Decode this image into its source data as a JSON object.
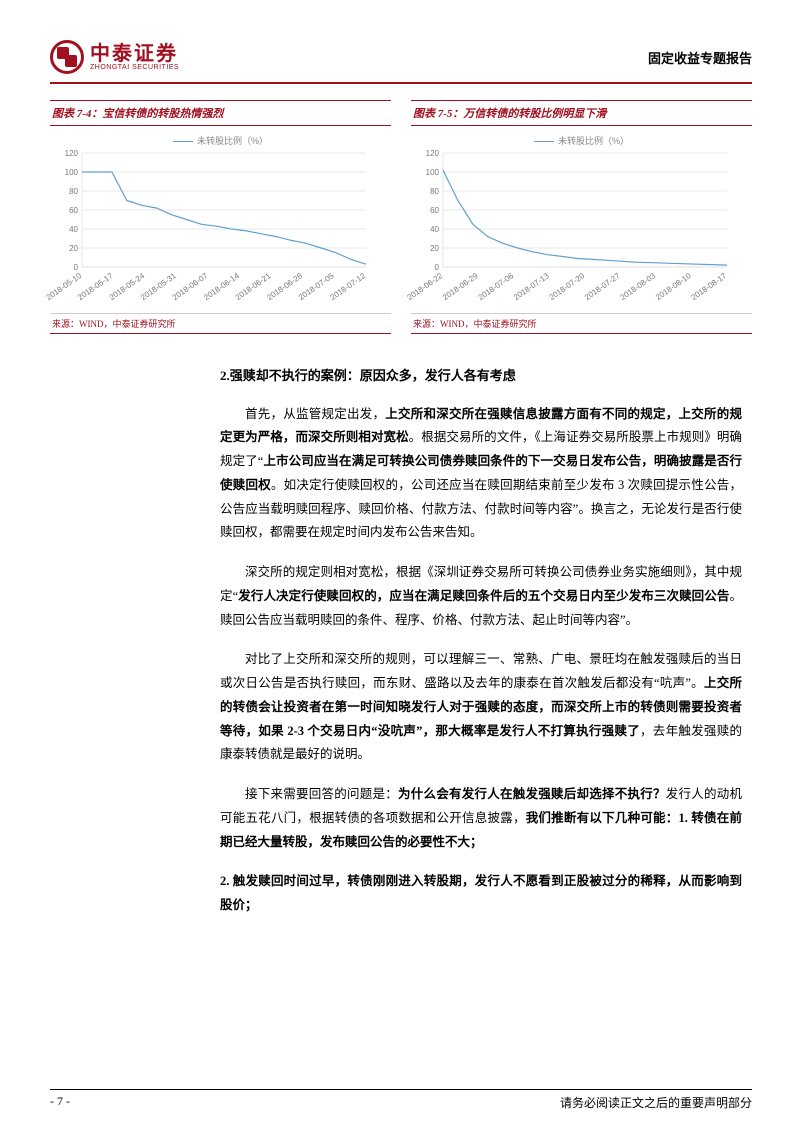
{
  "header": {
    "logo_cn": "中泰证券",
    "logo_en": "ZHONGTAI SECURITIES",
    "report_type": "固定收益专题报告"
  },
  "charts": [
    {
      "title": "图表 7-4：宝信转债的转股热情强烈",
      "legend": "未转股比例（%）",
      "type": "line",
      "line_color": "#60a0d0",
      "grid_color": "#d0d0d0",
      "axis_color": "#e0e0e0",
      "ylim": [
        0,
        120
      ],
      "ytick_step": 20,
      "x_labels": [
        "2018-05-10",
        "2018-05-17",
        "2018-05-24",
        "2018-05-31",
        "2018-06-07",
        "2018-06-14",
        "2018-06-21",
        "2018-06-28",
        "2018-07-05",
        "2018-07-12"
      ],
      "values": [
        100,
        100,
        100,
        70,
        65,
        62,
        55,
        50,
        45,
        43,
        40,
        38,
        35,
        32,
        28,
        25,
        20,
        15,
        8,
        3
      ],
      "source": "来源：WIND，中泰证券研究所"
    },
    {
      "title": "图表 7-5：万信转债的转股比例明显下滑",
      "legend": "未转股比例（%）",
      "type": "line",
      "line_color": "#60a0d0",
      "grid_color": "#d0d0d0",
      "axis_color": "#e0e0e0",
      "ylim": [
        0,
        120
      ],
      "ytick_step": 20,
      "x_labels": [
        "2018-06-22",
        "2018-06-29",
        "2018-07-06",
        "2018-07-13",
        "2018-07-20",
        "2018-07-27",
        "2018-08-03",
        "2018-08-10",
        "2018-08-17"
      ],
      "values": [
        102,
        70,
        45,
        32,
        25,
        20,
        16,
        13,
        11,
        9,
        8,
        7,
        6,
        5,
        4.5,
        4,
        3.5,
        3,
        2.5,
        2
      ],
      "source": "来源：WIND，中泰证券研究所"
    }
  ],
  "body": {
    "section_head": "2.强赎却不执行的案例：原因众多，发行人各有考虑",
    "paras": [
      [
        {
          "t": "首先，从监管规定出发，",
          "b": false
        },
        {
          "t": "上交所和深交所在强赎信息披露方面有不同的规定，上交所的规定更为严格，而深交所则相对宽松",
          "b": true
        },
        {
          "t": "。根据交易所的文件，《上海证券交易所股票上市规则》明确规定了“",
          "b": false
        },
        {
          "t": "上市公司应当在满足可转换公司债券赎回条件的下一交易日发布公告，明确披露是否行使赎回权",
          "b": true
        },
        {
          "t": "。如决定行使赎回权的，公司还应当在赎回期结束前至少发布 3 次赎回提示性公告，公告应当载明赎回程序、赎回价格、付款方法、付款时间等内容”。换言之，无论发行是否行使赎回权，都需要在规定时间内发布公告来告知。",
          "b": false
        }
      ],
      [
        {
          "t": "深交所的规定则相对宽松，根据《深圳证券交易所可转换公司债券业务实施细则》，其中规定“",
          "b": false
        },
        {
          "t": "发行人决定行使赎回权的，应当在满足赎回条件后的五个交易日内至少发布三次赎回公告",
          "b": true
        },
        {
          "t": "。赎回公告应当载明赎回的条件、程序、价格、付款方法、起止时间等内容”。",
          "b": false
        }
      ],
      [
        {
          "t": "对比了上交所和深交所的规则，可以理解三一、常熟、广电、景旺均在触发强赎后的当日或次日公告是否执行赎回，而东财、盛路以及去年的康泰在首次触发后都没有“吭声”。",
          "b": false
        },
        {
          "t": "上交所的转债会让投资者在第一时间知晓发行人对于强赎的态度，而深交所上市的转债则需要投资者等待，如果 2-3 个交易日内“没吭声”，那大概率是发行人不打算执行强赎了",
          "b": true
        },
        {
          "t": "，去年触发强赎的康泰转债就是最好的说明。",
          "b": false
        }
      ],
      [
        {
          "t": "接下来需要回答的问题是：",
          "b": false
        },
        {
          "t": "为什么会有发行人在触发强赎后却选择不执行？",
          "b": true
        },
        {
          "t": "发行人的动机可能五花八门，根据转债的各项数据和公开信息披露，",
          "b": false
        },
        {
          "t": "我们推断有以下几种可能：1. 转债在前期已经大量转股，发布赎回公告的必要性不大；",
          "b": true
        }
      ],
      [
        {
          "t": "2. 触发赎回时间过早，转债刚刚进入转股期，发行人不愿看到正股被过分的稀释，从而影响到股价；",
          "b": true
        }
      ]
    ]
  },
  "footer": {
    "page": "- 7 -",
    "disclaimer": "请务必阅读正文之后的重要声明部分"
  },
  "colors": {
    "brand": "#a01020",
    "chart_line": "#60a0d0",
    "grid": "#d0d0d0",
    "text": "#000000"
  }
}
